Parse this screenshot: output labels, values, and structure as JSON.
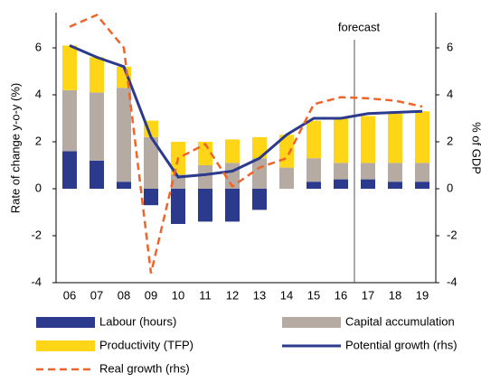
{
  "chart_data": {
    "type": "bar",
    "stacked": true,
    "categories": [
      "06",
      "07",
      "08",
      "09",
      "10",
      "11",
      "12",
      "13",
      "14",
      "15",
      "16",
      "17",
      "18",
      "19"
    ],
    "series": [
      {
        "name": "Labour (hours)",
        "color": "#2b3a8c",
        "values": [
          1.6,
          1.2,
          0.3,
          -0.7,
          -1.5,
          -1.4,
          -1.4,
          -0.9,
          0,
          0.3,
          0.4,
          0.4,
          0.3,
          0.3
        ]
      },
      {
        "name": "Capital accumulation",
        "color": "#b5aba3",
        "values": [
          2.6,
          2.9,
          4.0,
          2.2,
          0.6,
          1.0,
          1.1,
          1.3,
          0.9,
          1.0,
          0.7,
          0.7,
          0.8,
          0.8
        ]
      },
      {
        "name": "Productivity (TFP)",
        "color": "#ffd617",
        "values": [
          1.9,
          1.5,
          0.9,
          0.7,
          1.4,
          1.0,
          1.0,
          0.9,
          1.4,
          1.6,
          1.9,
          2.0,
          2.1,
          2.2
        ]
      },
      {
        "name": "Potential growth (rhs)",
        "color": "#2b3a8c",
        "type": "line",
        "axis": "y2",
        "values": [
          6.1,
          5.6,
          5.2,
          2.2,
          0.5,
          0.6,
          0.75,
          1.3,
          2.3,
          3.0,
          3.0,
          3.2,
          3.25,
          3.3
        ]
      },
      {
        "name": "Real growth (rhs)",
        "color": "#f0642a",
        "type": "line",
        "dashed": true,
        "axis": "y2",
        "values": [
          6.9,
          7.4,
          6.0,
          -3.6,
          1.3,
          1.9,
          0.1,
          0.9,
          1.3,
          3.6,
          3.9,
          3.85,
          3.75,
          3.5
        ]
      }
    ],
    "ylabel": "Rate of change y-o-y (%)",
    "y2label": "% of GDP",
    "annotation": "forecast",
    "ylim": [
      -4,
      7.5
    ],
    "yticks": [
      -4,
      -2,
      0,
      2,
      4,
      6
    ],
    "y2lim": [
      -4,
      7.5
    ],
    "y2ticks": [
      -4,
      -2,
      0,
      2,
      4,
      6
    ]
  }
}
